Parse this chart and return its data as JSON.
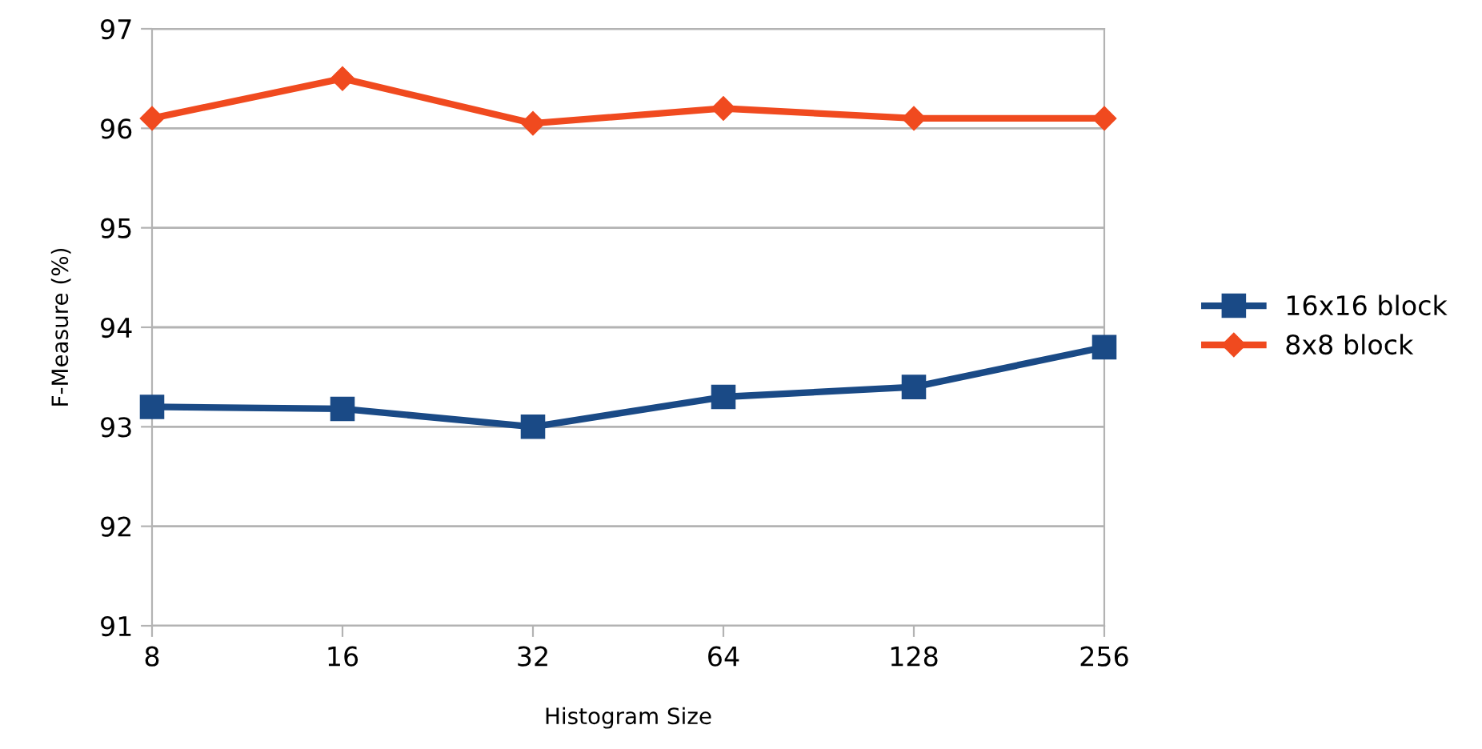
{
  "chart_data": {
    "type": "line",
    "xlabel": "Histogram Size",
    "ylabel": "F-Measure (%)",
    "categories": [
      "8",
      "16",
      "32",
      "64",
      "128",
      "256"
    ],
    "ylim": [
      91,
      97
    ],
    "yticks": [
      91,
      92,
      93,
      94,
      95,
      96,
      97
    ],
    "grid": "y",
    "legend": "right",
    "line_style": "solid",
    "series": [
      {
        "name": "16x16 block",
        "color": "#1a4a86",
        "marker": "square",
        "values": [
          93.2,
          93.18,
          93.0,
          93.3,
          93.4,
          93.8
        ]
      },
      {
        "name": "8x8 block",
        "color": "#f04a1f",
        "marker": "diamond",
        "values": [
          96.1,
          96.5,
          96.05,
          96.2,
          96.1,
          96.1
        ]
      }
    ]
  }
}
